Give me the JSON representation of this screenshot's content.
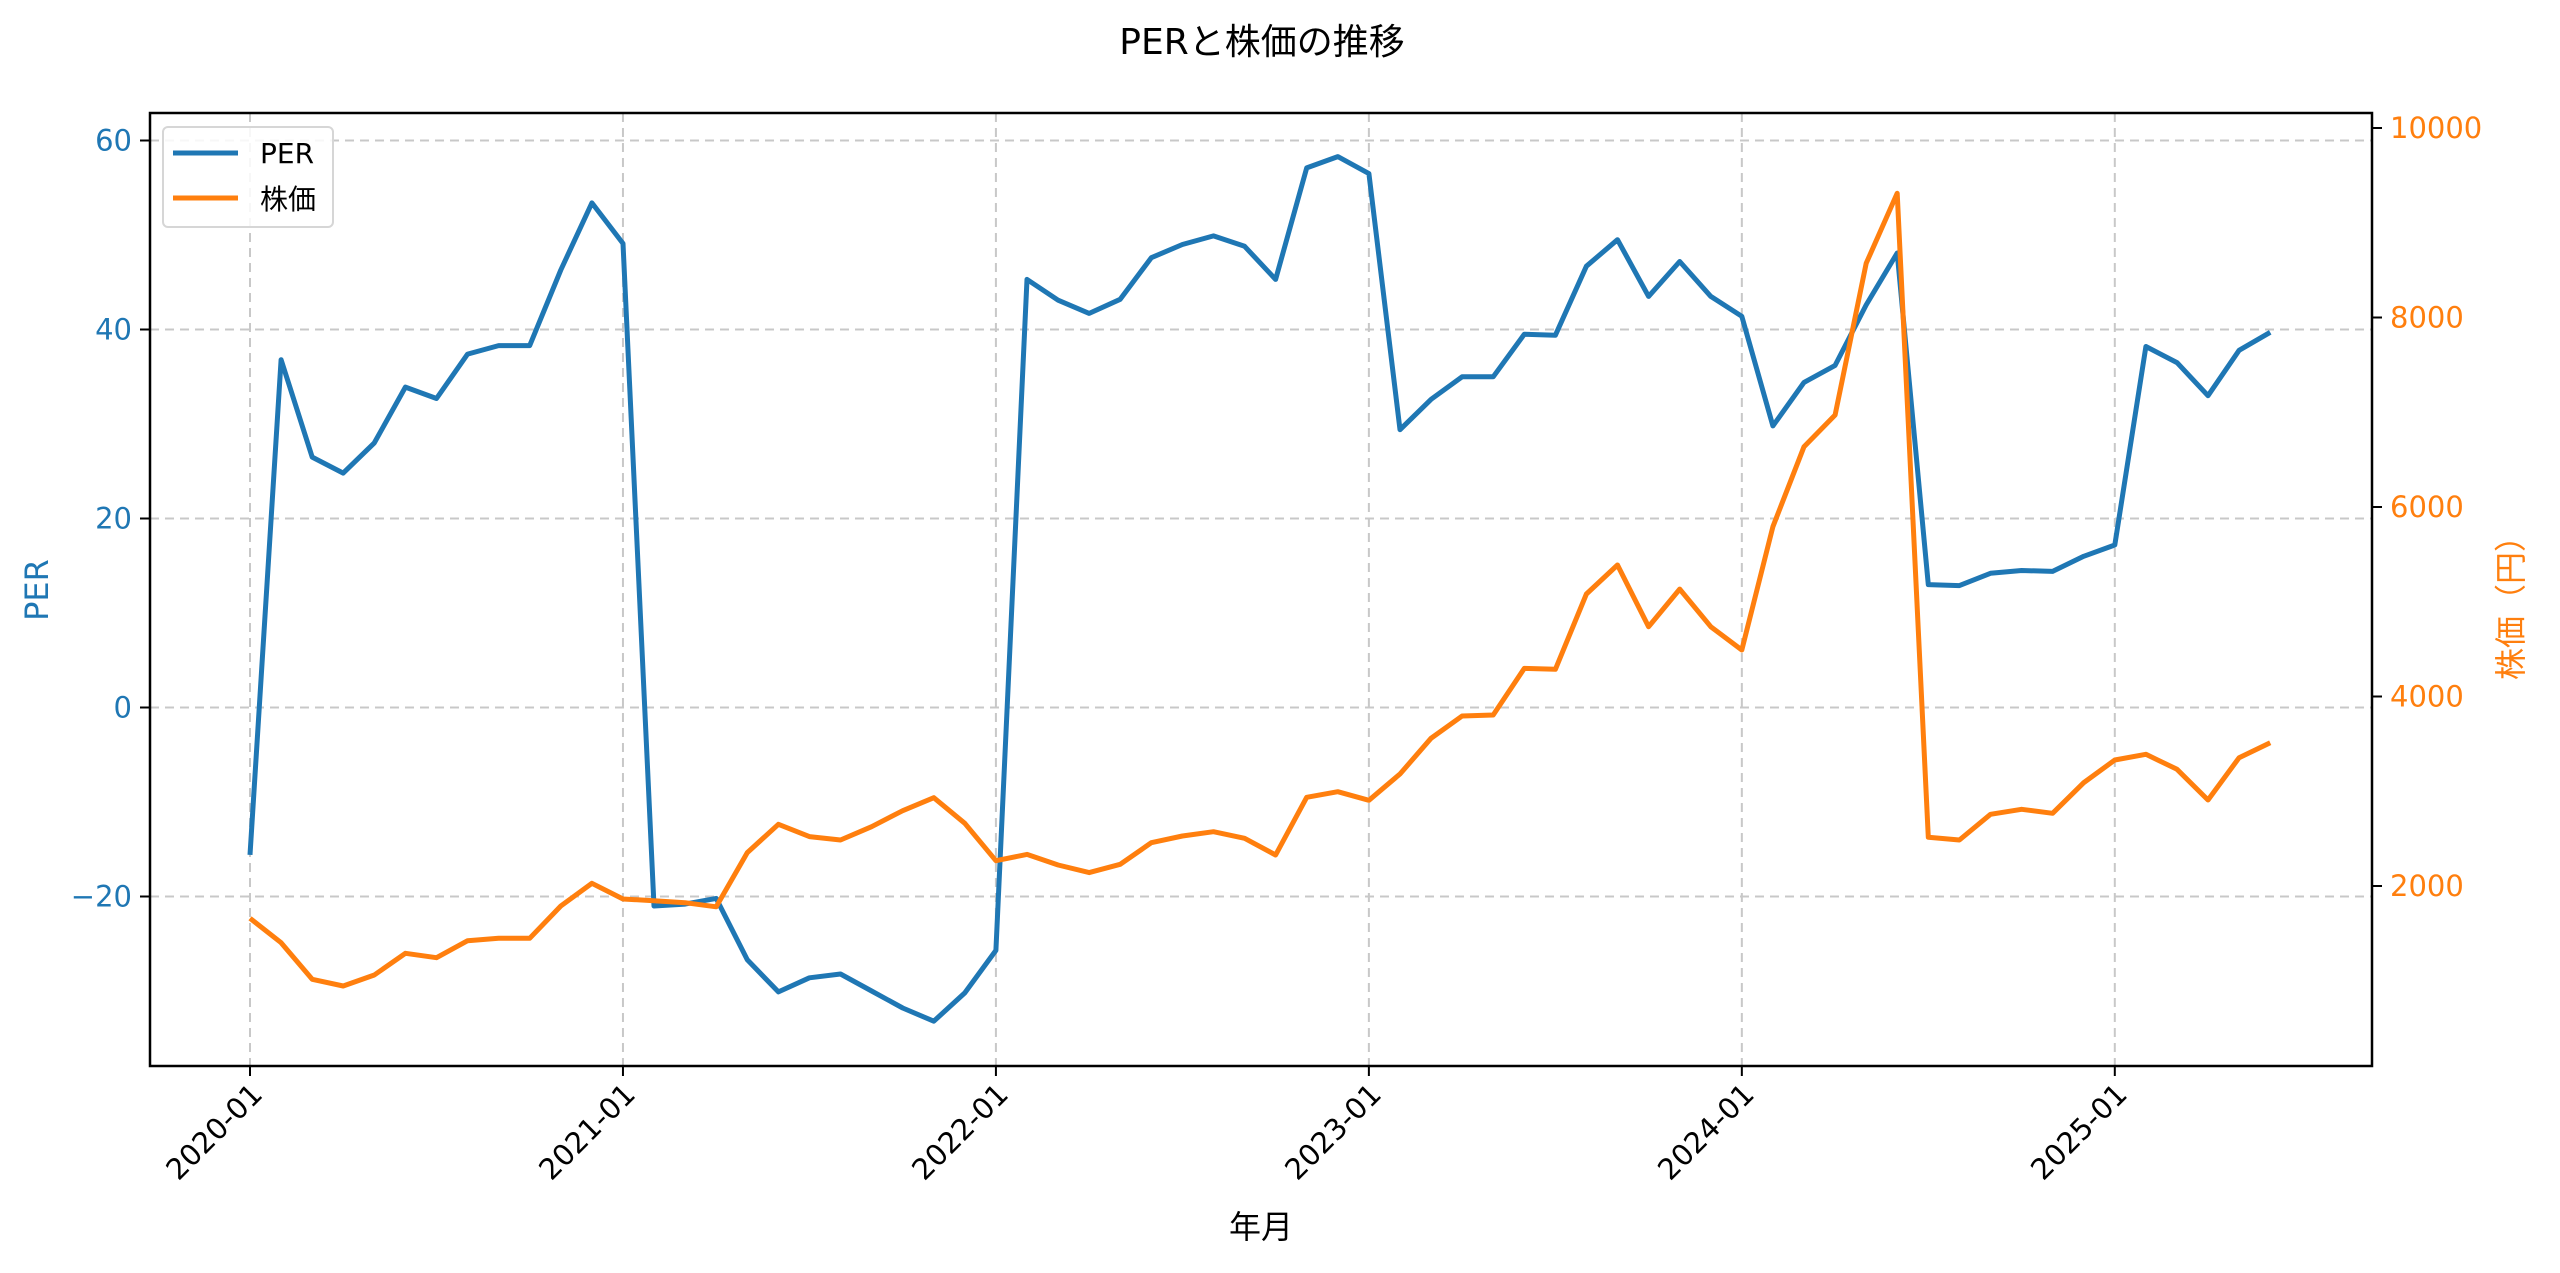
{
  "chart_data": {
    "type": "line",
    "title": "PERと株価の推移",
    "xlabel": "年月",
    "ylabel_left": "PER",
    "ylabel_right": "株価（円）",
    "x_ticks": [
      "2020-01",
      "2021-01",
      "2022-01",
      "2023-01",
      "2024-01",
      "2025-01"
    ],
    "y_left_ticks": [
      60,
      40,
      20,
      0,
      -20
    ],
    "y_left_tick_labels": [
      "60",
      "40",
      "20",
      "0",
      "−20"
    ],
    "y_right_ticks": [
      10000,
      8000,
      6000,
      4000,
      2000
    ],
    "y_right_tick_labels": [
      "10000",
      "8000",
      "6000",
      "4000",
      "2000"
    ],
    "grid": true,
    "legend_position": "upper left",
    "legend": [
      "PER",
      "株価"
    ],
    "x": [
      "2020-01",
      "2020-02",
      "2020-03",
      "2020-04",
      "2020-05",
      "2020-06",
      "2020-07",
      "2020-08",
      "2020-09",
      "2020-10",
      "2020-11",
      "2020-12",
      "2021-01",
      "2021-02",
      "2021-03",
      "2021-04",
      "2021-05",
      "2021-06",
      "2021-07",
      "2021-08",
      "2021-09",
      "2021-10",
      "2021-11",
      "2021-12",
      "2022-01",
      "2022-02",
      "2022-03",
      "2022-04",
      "2022-05",
      "2022-06",
      "2022-07",
      "2022-08",
      "2022-09",
      "2022-10",
      "2022-11",
      "2022-12",
      "2023-01",
      "2023-02",
      "2023-03",
      "2023-04",
      "2023-05",
      "2023-06",
      "2023-07",
      "2023-08",
      "2023-09",
      "2023-10",
      "2023-11",
      "2023-12",
      "2024-01",
      "2024-02",
      "2024-03",
      "2024-04",
      "2024-05",
      "2024-06",
      "2024-07",
      "2024-08",
      "2024-09",
      "2024-10",
      "2024-11",
      "2024-12",
      "2025-01",
      "2025-02",
      "2025-03",
      "2025-04",
      "2025-05",
      "2025-06"
    ],
    "series": [
      {
        "name": "PER",
        "axis": "left",
        "color": "#1f77b4",
        "values": [
          -15.6,
          36.8,
          26.5,
          24.8,
          28.0,
          33.9,
          32.7,
          37.4,
          38.3,
          38.3,
          46.3,
          53.4,
          49.1,
          -21.0,
          -20.8,
          -20.2,
          -26.7,
          -30.1,
          -28.6,
          -28.2,
          -30.0,
          -31.8,
          -33.2,
          -30.2,
          -25.7,
          45.3,
          43.1,
          41.7,
          43.2,
          47.6,
          49.0,
          49.9,
          48.8,
          45.3,
          57.1,
          58.3,
          56.5,
          29.4,
          32.6,
          35.0,
          35.0,
          39.5,
          39.4,
          46.7,
          49.5,
          43.5,
          47.2,
          43.5,
          41.4,
          29.8,
          34.4,
          36.2,
          42.6,
          48.1,
          13.0,
          12.9,
          14.2,
          14.5,
          14.4,
          16.0,
          17.2,
          38.2,
          36.5,
          33.0,
          37.8,
          39.7
        ]
      },
      {
        "name": "株価",
        "axis": "right",
        "color": "#ff7f0e",
        "values": [
          1659,
          1402,
          1015,
          945,
          1061,
          1290,
          1243,
          1423,
          1448,
          1448,
          1789,
          2028,
          1863,
          1845,
          1824,
          1780,
          2352,
          2651,
          2521,
          2485,
          2626,
          2795,
          2932,
          2662,
          2267,
          2334,
          2222,
          2141,
          2229,
          2457,
          2528,
          2573,
          2503,
          2327,
          2936,
          2995,
          2905,
          3182,
          3559,
          3794,
          3805,
          4297,
          4287,
          5082,
          5388,
          4737,
          5134,
          4737,
          4491,
          5792,
          6636,
          6971,
          8572,
          9311,
          2514,
          2485,
          2757,
          2809,
          2767,
          3090,
          3330,
          3390,
          3232,
          2908,
          3354,
          3512
        ]
      }
    ]
  },
  "layout_colors": {
    "per": "#1f77b4",
    "price": "#ff7f0e",
    "grid": "#c8c8c8"
  }
}
